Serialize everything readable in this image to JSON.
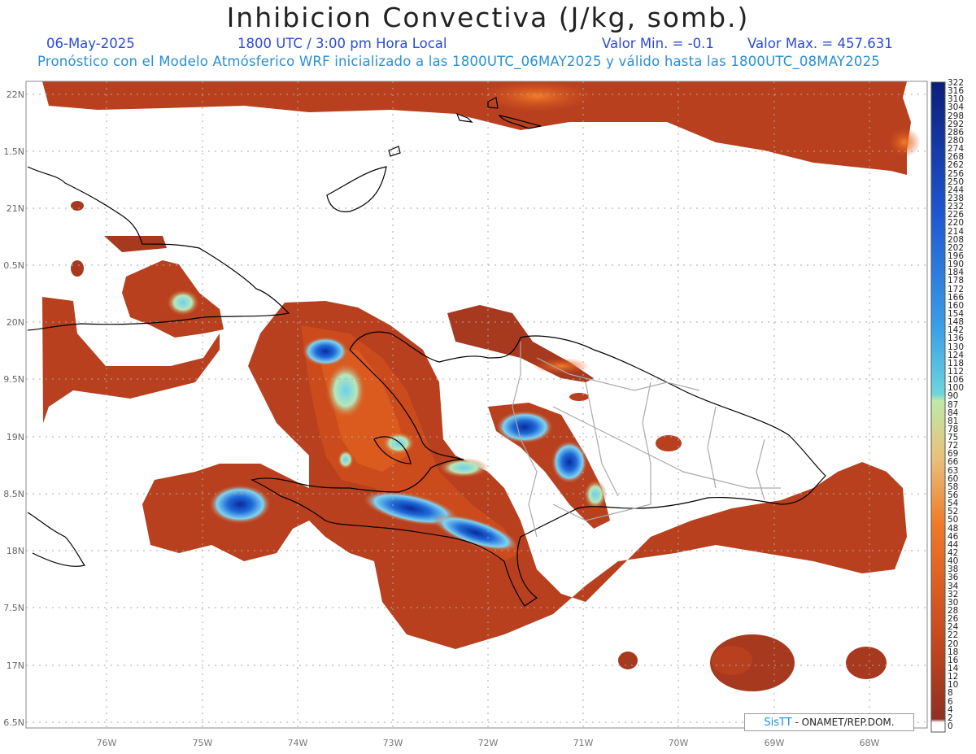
{
  "header": {
    "title": "Inhibicion Convectiva (J/kg, somb.)",
    "date": "06-May-2025",
    "time": "1800 UTC / 3:00 pm Hora Local",
    "min_value": "Valor Min. = -0.1",
    "max_value": "Valor Max. = 457.631",
    "forecast_note": "Pronóstico con el Modelo Atmósferico WRF inicializado a las 1800UTC_06MAY2025 y válido hasta las  1800UTC_08MAY2025"
  },
  "axes": {
    "lat_labels": [
      "22N",
      "1.5N",
      "21N",
      "0.5N",
      "20N",
      "9.5N",
      "19N",
      "8.5N",
      "18N",
      "7.5N",
      "17N",
      "6.5N"
    ],
    "lon_labels": [
      "76W",
      "75W",
      "74W",
      "73W",
      "72W",
      "71W",
      "70W",
      "69W",
      "68W"
    ]
  },
  "colorbar": {
    "labels": [
      "322",
      "316",
      "310",
      "304",
      "298",
      "292",
      "286",
      "280",
      "274",
      "268",
      "262",
      "256",
      "250",
      "244",
      "238",
      "232",
      "226",
      "220",
      "214",
      "208",
      "202",
      "196",
      "190",
      "184",
      "178",
      "172",
      "166",
      "160",
      "154",
      "148",
      "142",
      "136",
      "130",
      "124",
      "118",
      "112",
      "106",
      "100",
      "90",
      "87",
      "84",
      "81",
      "78",
      "75",
      "72",
      "69",
      "66",
      "63",
      "60",
      "58",
      "56",
      "54",
      "52",
      "50",
      "48",
      "46",
      "44",
      "42",
      "40",
      "38",
      "36",
      "34",
      "32",
      "30",
      "28",
      "26",
      "24",
      "22",
      "20",
      "18",
      "16",
      "14",
      "12",
      "10",
      "8",
      "6",
      "4",
      "2",
      "0"
    ]
  },
  "credit": {
    "brand": "SisTT",
    "text": " - ONAMET/REP.DOM."
  },
  "colors": {
    "low": "#8f3022",
    "mid": "#d9541c",
    "high": "#0a2a9c",
    "border": "#000000"
  }
}
